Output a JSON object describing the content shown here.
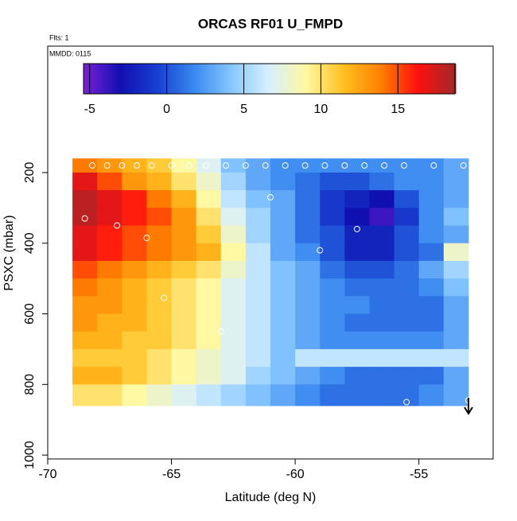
{
  "chart_data": {
    "type": "heatmap",
    "title": "ORCAS RF01 U_FMPD",
    "notes": [
      "Flts: 1",
      "MMDD: 0115"
    ],
    "xlabel": "Latitude (deg N)",
    "ylabel": "PSXC (mbar)",
    "xlim": [
      -70,
      -52
    ],
    "xticks": [
      -70,
      -65,
      -60,
      -55
    ],
    "ylim": [
      1011,
      -158
    ],
    "yticks": [
      200,
      400,
      600,
      800,
      1000
    ],
    "x_edges": [
      -69,
      -68,
      -67,
      -66,
      -65,
      -64,
      -63,
      -62,
      -61,
      -60,
      -59,
      -58,
      -57,
      -56,
      -55,
      -54,
      -53
    ],
    "y_edges": [
      160,
      200,
      250,
      300,
      350,
      400,
      450,
      500,
      550,
      600,
      650,
      700,
      750,
      800,
      860
    ],
    "z": [
      [
        14,
        13,
        12,
        11,
        9,
        7,
        4,
        3,
        2,
        2,
        2,
        2,
        2,
        2,
        2,
        3
      ],
      [
        17,
        15,
        13,
        12,
        10,
        8,
        5,
        3,
        2,
        1,
        0,
        0,
        1,
        2,
        2,
        3
      ],
      [
        18,
        17,
        16,
        14,
        12,
        9,
        6,
        4,
        3,
        1,
        -1,
        -2,
        -3,
        0,
        2,
        3
      ],
      [
        18,
        17,
        16,
        15,
        13,
        10,
        7,
        5,
        3,
        1,
        -1,
        -3,
        -4,
        -1,
        2,
        4
      ],
      [
        17,
        16,
        15,
        14,
        13,
        11,
        8,
        5,
        3,
        1,
        0,
        -2,
        -2,
        0,
        2,
        3
      ],
      [
        17,
        16,
        15,
        14,
        13,
        12,
        9,
        6,
        3,
        2,
        0,
        -2,
        -2,
        0,
        1,
        8
      ],
      [
        15,
        14,
        13,
        12,
        11,
        10,
        8,
        6,
        4,
        3,
        1,
        0,
        0,
        1,
        3,
        5
      ],
      [
        14,
        13,
        12,
        11,
        10,
        9,
        7,
        6,
        4,
        3,
        2,
        1,
        1,
        1,
        2,
        4
      ],
      [
        13,
        13,
        12,
        11,
        10,
        9,
        7,
        6,
        4,
        3,
        2,
        2,
        1,
        1,
        1,
        3
      ],
      [
        13,
        12,
        12,
        11,
        10,
        9,
        7,
        6,
        4,
        3,
        2,
        1,
        1,
        1,
        1,
        3
      ],
      [
        12,
        12,
        11,
        11,
        10,
        9,
        7,
        6,
        4,
        3,
        2,
        2,
        2,
        2,
        2,
        3
      ],
      [
        11,
        11,
        11,
        10,
        9,
        8,
        7,
        6,
        4,
        6,
        6,
        6,
        6,
        6,
        6,
        6
      ],
      [
        12,
        12,
        11,
        10,
        9,
        8,
        7,
        5,
        4,
        3,
        2,
        1,
        1,
        1,
        1,
        3
      ],
      [
        10,
        10,
        9,
        8,
        7,
        6,
        5,
        4,
        3,
        2,
        1,
        1,
        1,
        1,
        2,
        3
      ]
    ],
    "zlim": [
      -5.4,
      18.7
    ],
    "zticks": [
      -5,
      0,
      5,
      10,
      15
    ],
    "colorscale": [
      "#7a1fd6",
      "#1010b0",
      "#1840d0",
      "#3a8af0",
      "#88c8ff",
      "#d8f0ff",
      "#fff8a0",
      "#ffc020",
      "#ff8000",
      "#ff1010",
      "#a02828"
    ],
    "points": {
      "lat": [
        -68.2,
        -67.6,
        -67,
        -66.4,
        -65.8,
        -65,
        -64.3,
        -63.6,
        -62.8,
        -62,
        -61.2,
        -60.4,
        -59.6,
        -58.8,
        -58,
        -57.2,
        -56.4,
        -55.6,
        -54.4,
        -53.2,
        -68.5,
        -67.2,
        -66,
        -65.3,
        -63,
        -61,
        -59,
        -57.5,
        -55.5,
        -53
      ],
      "pressure": [
        180,
        180,
        180,
        180,
        180,
        180,
        180,
        180,
        180,
        180,
        180,
        180,
        180,
        180,
        180,
        180,
        180,
        180,
        180,
        180,
        330,
        350,
        385,
        555,
        650,
        270,
        420,
        360,
        850,
        845
      ]
    }
  }
}
